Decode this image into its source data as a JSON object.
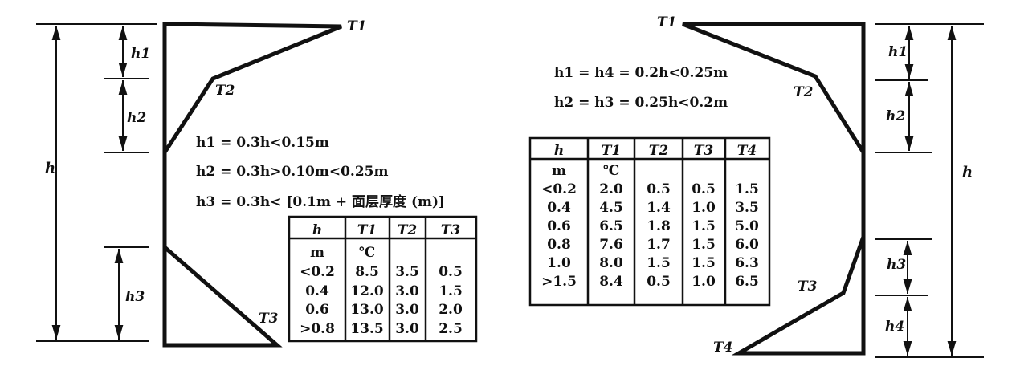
{
  "left": {
    "labels": {
      "T1": "T1",
      "T2": "T2",
      "T3": "T3",
      "h": "h",
      "h1": "h1",
      "h2": "h2",
      "h3": "h3"
    },
    "formulas": [
      "h1 = 0.3h<0.15m",
      "h2 = 0.3h>0.10m<0.25m",
      "h3 = 0.3h< [0.1m + 面层厚度 (m)]"
    ],
    "table": {
      "headers": [
        "h",
        "T1",
        "T2",
        "T3"
      ],
      "units": [
        "m",
        "℃",
        "",
        ""
      ],
      "rows": [
        [
          "<0.2",
          "8.5",
          "3.5",
          "0.5"
        ],
        [
          "0.4",
          "12.0",
          "3.0",
          "1.5"
        ],
        [
          "0.6",
          "13.0",
          "3.0",
          "2.0"
        ],
        [
          ">0.8",
          "13.5",
          "3.0",
          "2.5"
        ]
      ]
    }
  },
  "right": {
    "labels": {
      "T1": "T1",
      "T2": "T2",
      "T3": "T3",
      "T4": "T4",
      "h": "h",
      "h1": "h1",
      "h2": "h2",
      "h3": "h3",
      "h4": "h4"
    },
    "formulas": [
      "h1 = h4 = 0.2h<0.25m",
      "h2 = h3 = 0.25h<0.2m"
    ],
    "table": {
      "headers": [
        "h",
        "T1",
        "T2",
        "T3",
        "T4"
      ],
      "units": [
        "m",
        "℃",
        "",
        "",
        ""
      ],
      "rows": [
        [
          "<0.2",
          "2.0",
          "0.5",
          "0.5",
          "1.5"
        ],
        [
          "0.4",
          "4.5",
          "1.4",
          "1.0",
          "3.5"
        ],
        [
          "0.6",
          "6.5",
          "1.8",
          "1.5",
          "5.0"
        ],
        [
          "0.8",
          "7.6",
          "1.7",
          "1.5",
          "6.0"
        ],
        [
          "1.0",
          "8.0",
          "1.5",
          "1.5",
          "6.3"
        ],
        [
          ">1.5",
          "8.4",
          "0.5",
          "1.0",
          "6.5"
        ]
      ]
    }
  }
}
